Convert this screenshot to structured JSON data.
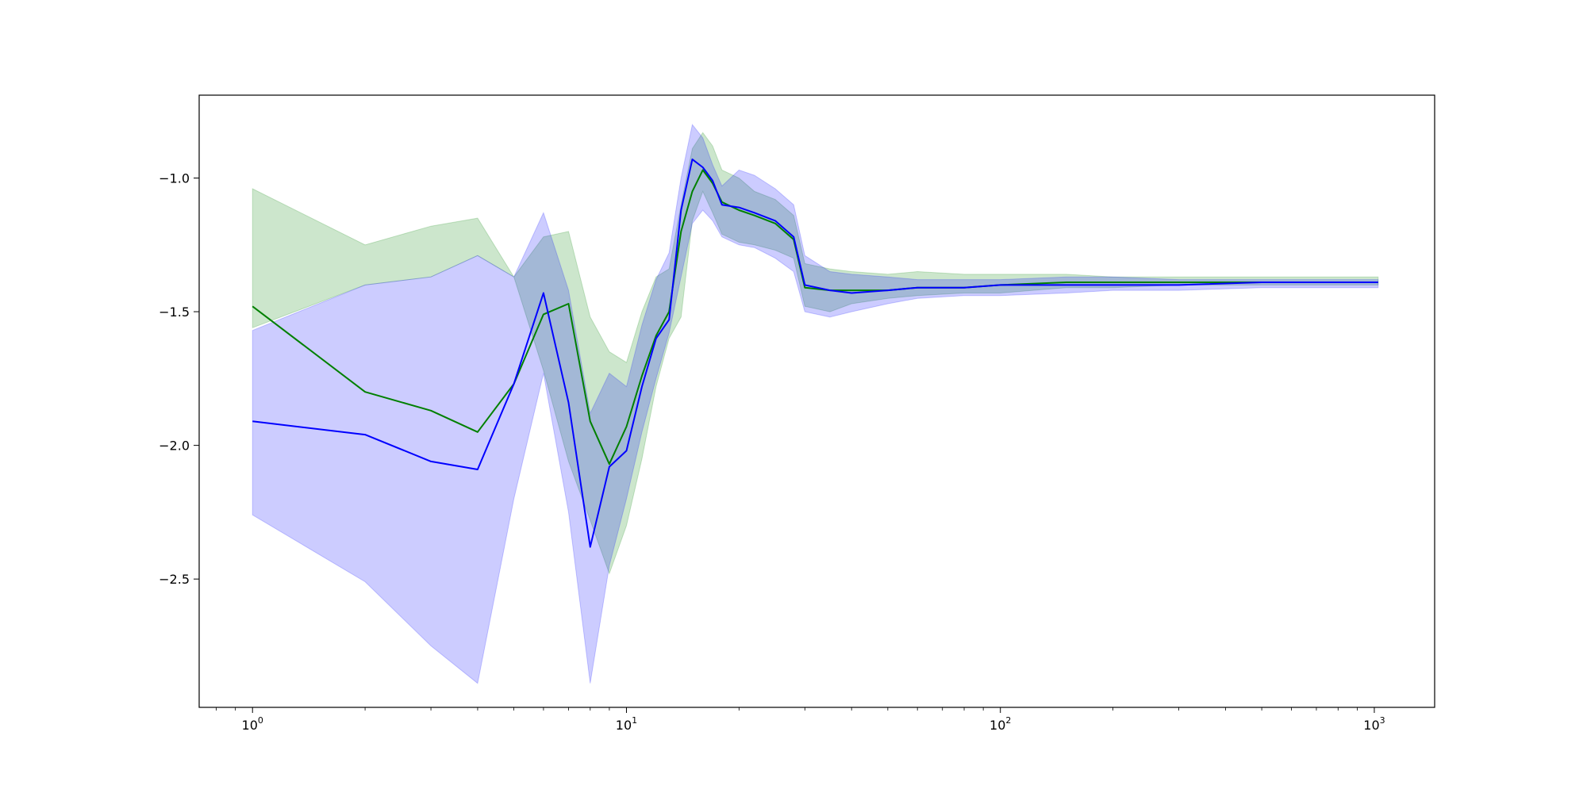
{
  "chart_data": {
    "type": "line",
    "title": "",
    "xlabel": "",
    "ylabel": "",
    "xscale": "log",
    "xlim": [
      0.72,
      1450
    ],
    "ylim": [
      -2.98,
      -0.69
    ],
    "grid": false,
    "legend": "none",
    "x_ticks": [
      {
        "value": 1,
        "base": "10",
        "exp": "0"
      },
      {
        "value": 10,
        "base": "10",
        "exp": "1"
      },
      {
        "value": 100,
        "base": "10",
        "exp": "2"
      },
      {
        "value": 1000,
        "base": "10",
        "exp": "3"
      }
    ],
    "y_ticks": [
      {
        "value": -1.0,
        "label": "−1.0"
      },
      {
        "value": -1.5,
        "label": "−1.5"
      },
      {
        "value": -2.0,
        "label": "−2.0"
      },
      {
        "value": -2.5,
        "label": "−2.5"
      }
    ],
    "bands": [
      {
        "color": "#008000",
        "opacity": 0.2,
        "x": [
          1,
          2,
          3,
          4,
          5,
          6,
          7,
          8,
          9,
          10,
          11,
          12,
          13,
          14,
          15,
          16,
          17,
          18,
          20,
          22,
          25,
          28,
          30,
          35,
          40,
          50,
          60,
          80,
          100,
          150,
          200,
          300,
          500,
          700,
          1024
        ],
        "upper": [
          -1.04,
          -1.25,
          -1.18,
          -1.15,
          -1.37,
          -1.22,
          -1.2,
          -1.52,
          -1.65,
          -1.69,
          -1.5,
          -1.37,
          -1.34,
          -1.1,
          -0.89,
          -0.83,
          -0.88,
          -0.97,
          -1.0,
          -1.05,
          -1.08,
          -1.14,
          -1.32,
          -1.34,
          -1.35,
          -1.36,
          -1.35,
          -1.36,
          -1.36,
          -1.36,
          -1.37,
          -1.37,
          -1.37,
          -1.37,
          -1.37
        ],
        "lower": [
          -1.56,
          -1.4,
          -1.37,
          -1.29,
          -1.37,
          -1.72,
          -2.06,
          -2.28,
          -2.48,
          -2.3,
          -2.05,
          -1.78,
          -1.6,
          -1.52,
          -1.16,
          -1.05,
          -1.13,
          -1.21,
          -1.24,
          -1.25,
          -1.27,
          -1.3,
          -1.48,
          -1.5,
          -1.47,
          -1.45,
          -1.44,
          -1.43,
          -1.43,
          -1.41,
          -1.41,
          -1.4,
          -1.4,
          -1.4,
          -1.4
        ]
      },
      {
        "color": "#0000ff",
        "opacity": 0.2,
        "x": [
          1,
          2,
          3,
          4,
          5,
          6,
          7,
          8,
          9,
          10,
          11,
          12,
          13,
          14,
          15,
          16,
          17,
          18,
          20,
          22,
          25,
          28,
          30,
          35,
          40,
          50,
          60,
          80,
          100,
          150,
          200,
          300,
          500,
          700,
          1024
        ],
        "upper": [
          -1.57,
          -1.4,
          -1.37,
          -1.29,
          -1.37,
          -1.13,
          -1.42,
          -1.88,
          -1.73,
          -1.78,
          -1.55,
          -1.38,
          -1.28,
          -1.0,
          -0.8,
          -0.85,
          -0.95,
          -1.03,
          -0.97,
          -0.99,
          -1.04,
          -1.1,
          -1.29,
          -1.35,
          -1.36,
          -1.37,
          -1.38,
          -1.38,
          -1.38,
          -1.37,
          -1.37,
          -1.38,
          -1.38,
          -1.38,
          -1.38
        ],
        "lower": [
          -2.26,
          -2.51,
          -2.75,
          -2.89,
          -2.2,
          -1.73,
          -2.25,
          -2.89,
          -2.45,
          -2.2,
          -1.95,
          -1.75,
          -1.58,
          -1.37,
          -1.17,
          -1.12,
          -1.16,
          -1.22,
          -1.25,
          -1.26,
          -1.3,
          -1.35,
          -1.5,
          -1.52,
          -1.5,
          -1.47,
          -1.45,
          -1.44,
          -1.44,
          -1.43,
          -1.42,
          -1.42,
          -1.41,
          -1.41,
          -1.41
        ]
      }
    ],
    "series": [
      {
        "color": "#008000",
        "x": [
          1,
          2,
          3,
          4,
          5,
          6,
          7,
          8,
          9,
          10,
          11,
          12,
          13,
          14,
          15,
          16,
          17,
          18,
          20,
          22,
          25,
          28,
          30,
          35,
          40,
          50,
          60,
          80,
          100,
          150,
          200,
          300,
          500,
          700,
          1024
        ],
        "values": [
          -1.48,
          -1.8,
          -1.87,
          -1.95,
          -1.77,
          -1.51,
          -1.47,
          -1.91,
          -2.07,
          -1.93,
          -1.74,
          -1.59,
          -1.5,
          -1.2,
          -1.05,
          -0.97,
          -1.02,
          -1.09,
          -1.12,
          -1.14,
          -1.17,
          -1.23,
          -1.41,
          -1.42,
          -1.42,
          -1.42,
          -1.41,
          -1.41,
          -1.4,
          -1.39,
          -1.39,
          -1.39,
          -1.39,
          -1.39,
          -1.39
        ]
      },
      {
        "color": "#0000ff",
        "x": [
          1,
          2,
          3,
          4,
          5,
          6,
          7,
          8,
          9,
          10,
          11,
          12,
          13,
          14,
          15,
          16,
          17,
          18,
          20,
          22,
          25,
          28,
          30,
          35,
          40,
          50,
          60,
          80,
          100,
          150,
          200,
          300,
          500,
          700,
          1024
        ],
        "values": [
          -1.91,
          -1.96,
          -2.06,
          -2.09,
          -1.77,
          -1.43,
          -1.84,
          -2.38,
          -2.08,
          -2.02,
          -1.78,
          -1.6,
          -1.53,
          -1.12,
          -0.93,
          -0.96,
          -1.01,
          -1.1,
          -1.11,
          -1.13,
          -1.16,
          -1.22,
          -1.4,
          -1.42,
          -1.43,
          -1.42,
          -1.41,
          -1.41,
          -1.4,
          -1.4,
          -1.4,
          -1.4,
          -1.39,
          -1.39,
          -1.39
        ]
      }
    ]
  }
}
